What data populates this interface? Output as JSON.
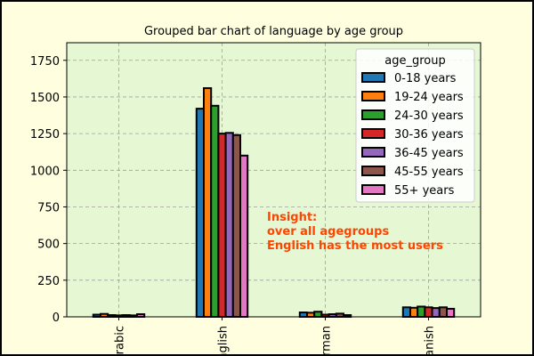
{
  "chart_data": {
    "type": "bar",
    "title": "Grouped bar chart of language by age group",
    "xlabel": "",
    "ylabel": "",
    "categories": [
      "Arabic",
      "English",
      "German",
      "Spanish"
    ],
    "ylim": [
      0,
      1870
    ],
    "yticks": [
      0,
      250,
      500,
      750,
      1000,
      1250,
      1500,
      1750
    ],
    "grid": true,
    "legend": {
      "title": "age_group",
      "placement": "top-right"
    },
    "series": [
      {
        "name": "0-18 years",
        "color": "#1f77b4",
        "values": [
          15,
          1420,
          30,
          65
        ]
      },
      {
        "name": "19-24 years",
        "color": "#ff7f0e",
        "values": [
          20,
          1560,
          28,
          62
        ]
      },
      {
        "name": "24-30 years",
        "color": "#2ca02c",
        "values": [
          12,
          1440,
          35,
          70
        ]
      },
      {
        "name": "30-36 years",
        "color": "#d62728",
        "values": [
          10,
          1250,
          15,
          65
        ]
      },
      {
        "name": "36-45 years",
        "color": "#9467bd",
        "values": [
          12,
          1255,
          18,
          60
        ]
      },
      {
        "name": "45-55 years",
        "color": "#8c564b",
        "values": [
          10,
          1240,
          22,
          65
        ]
      },
      {
        "name": "55+ years",
        "color": "#e377c2",
        "values": [
          18,
          1100,
          12,
          55
        ]
      }
    ],
    "annotation": {
      "lines": [
        "Insight:",
        "over all agegroups",
        "English has the most users"
      ],
      "color": "#ff4500"
    },
    "plot_background": "#e6f7d4",
    "page_background": "#ffffe0"
  }
}
